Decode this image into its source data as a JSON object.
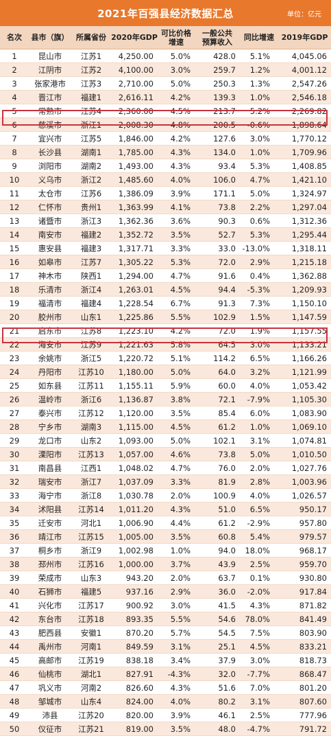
{
  "header": {
    "title": "2021年百强县经济数据汇总",
    "unit": "单位：亿元"
  },
  "columns": [
    "名次",
    "县市（旗）",
    "所属省份",
    "2020年GDP",
    "可比价格\n增速",
    "一般公共\n预算收入",
    "同比增速",
    "2019年GDP"
  ],
  "rows": [
    [
      "1",
      "昆山市",
      "江苏1",
      "4,250.00",
      "5.0%",
      "428.0",
      "5.1%",
      "4,045.06"
    ],
    [
      "2",
      "江阴市",
      "江苏2",
      "4,100.00",
      "3.0%",
      "259.7",
      "1.2%",
      "4,001.12"
    ],
    [
      "3",
      "张家港市",
      "江苏3",
      "2,710.00",
      "5.0%",
      "250.3",
      "1.3%",
      "2,547.26"
    ],
    [
      "4",
      "晋江市",
      "福建1",
      "2,616.11",
      "4.2%",
      "139.3",
      "1.0%",
      "2,546.18"
    ],
    [
      "5",
      "常熟市",
      "江苏4",
      "2,360.00",
      "4.5%",
      "213.7",
      "5.2%",
      "2,269.82"
    ],
    [
      "6",
      "慈溪市",
      "浙江1",
      "2,008.30",
      "4.8%",
      "200.5",
      "-0.6%",
      "1,898.64"
    ],
    [
      "7",
      "宜兴市",
      "江苏5",
      "1,846.00",
      "4.2%",
      "127.6",
      "3.0%",
      "1,770.12"
    ],
    [
      "8",
      "长沙县",
      "湖南1",
      "1,785.00",
      "4.3%",
      "134.0",
      "1.0%",
      "1,709.96"
    ],
    [
      "9",
      "浏阳市",
      "湖南2",
      "1,493.00",
      "4.3%",
      "93.4",
      "5.3%",
      "1,408.85"
    ],
    [
      "10",
      "义乌市",
      "浙江2",
      "1,485.60",
      "4.0%",
      "106.0",
      "4.7%",
      "1,421.10"
    ],
    [
      "11",
      "太仓市",
      "江苏6",
      "1,386.09",
      "3.9%",
      "171.1",
      "5.0%",
      "1,324.97"
    ],
    [
      "12",
      "仁怀市",
      "贵州1",
      "1,363.99",
      "4.1%",
      "73.8",
      "2.2%",
      "1,297.04"
    ],
    [
      "13",
      "诸暨市",
      "浙江3",
      "1,362.36",
      "3.6%",
      "90.3",
      "0.6%",
      "1,312.36"
    ],
    [
      "14",
      "南安市",
      "福建2",
      "1,352.72",
      "3.5%",
      "52.7",
      "5.3%",
      "1,295.44"
    ],
    [
      "15",
      "惠安县",
      "福建3",
      "1,317.71",
      "3.3%",
      "33.0",
      "-13.0%",
      "1,318.11"
    ],
    [
      "16",
      "如皋市",
      "江苏7",
      "1,305.22",
      "5.3%",
      "72.0",
      "2.9%",
      "1,215.18"
    ],
    [
      "17",
      "神木市",
      "陕西1",
      "1,294.00",
      "4.7%",
      "91.6",
      "0.4%",
      "1,362.88"
    ],
    [
      "18",
      "乐清市",
      "浙江4",
      "1,263.01",
      "4.5%",
      "94.4",
      "-5.3%",
      "1,209.93"
    ],
    [
      "19",
      "福清市",
      "福建4",
      "1,228.54",
      "6.7%",
      "91.3",
      "7.3%",
      "1,150.10"
    ],
    [
      "20",
      "胶州市",
      "山东1",
      "1,225.86",
      "5.5%",
      "102.9",
      "1.5%",
      "1,147.59"
    ],
    [
      "21",
      "启东市",
      "江苏8",
      "1,223.10",
      "4.2%",
      "72.0",
      "1.9%",
      "1,157.55"
    ],
    [
      "22",
      "海安市",
      "江苏9",
      "1,221.63",
      "5.8%",
      "64.5",
      "3.0%",
      "1,133.21"
    ],
    [
      "23",
      "余姚市",
      "浙江5",
      "1,220.72",
      "5.1%",
      "114.2",
      "6.5%",
      "1,166.26"
    ],
    [
      "24",
      "丹阳市",
      "江苏10",
      "1,180.00",
      "5.0%",
      "64.0",
      "3.2%",
      "1,121.99"
    ],
    [
      "25",
      "如东县",
      "江苏11",
      "1,155.11",
      "5.9%",
      "60.0",
      "4.0%",
      "1,053.42"
    ],
    [
      "26",
      "温岭市",
      "浙江6",
      "1,136.87",
      "3.8%",
      "72.1",
      "-7.9%",
      "1,105.30"
    ],
    [
      "27",
      "泰兴市",
      "江苏12",
      "1,120.00",
      "3.5%",
      "85.4",
      "6.0%",
      "1,083.90"
    ],
    [
      "28",
      "宁乡市",
      "湖南3",
      "1,115.00",
      "4.5%",
      "61.2",
      "1.0%",
      "1,069.10"
    ],
    [
      "29",
      "龙口市",
      "山东2",
      "1,093.00",
      "5.0%",
      "102.1",
      "3.1%",
      "1,074.81"
    ],
    [
      "30",
      "溧阳市",
      "江苏13",
      "1,057.00",
      "4.6%",
      "73.8",
      "5.0%",
      "1,010.50"
    ],
    [
      "31",
      "南昌县",
      "江西1",
      "1,048.02",
      "4.7%",
      "76.0",
      "2.0%",
      "1,027.76"
    ],
    [
      "32",
      "瑞安市",
      "浙江7",
      "1,037.09",
      "3.3%",
      "81.9",
      "2.8%",
      "1,003.96"
    ],
    [
      "33",
      "海宁市",
      "浙江8",
      "1,030.78",
      "2.0%",
      "100.9",
      "4.0%",
      "1,026.57"
    ],
    [
      "34",
      "沭阳县",
      "江苏14",
      "1,011.20",
      "4.3%",
      "51.0",
      "6.5%",
      "950.17"
    ],
    [
      "35",
      "迁安市",
      "河北1",
      "1,006.90",
      "4.4%",
      "61.2",
      "-2.9%",
      "957.80"
    ],
    [
      "36",
      "靖江市",
      "江苏15",
      "1,005.00",
      "3.5%",
      "60.8",
      "5.4%",
      "979.57"
    ],
    [
      "37",
      "桐乡市",
      "浙江9",
      "1,002.98",
      "1.0%",
      "94.0",
      "18.0%",
      "968.17"
    ],
    [
      "38",
      "邳州市",
      "江苏16",
      "1,000.00",
      "3.7%",
      "43.9",
      "2.5%",
      "959.70"
    ],
    [
      "39",
      "荣成市",
      "山东3",
      "943.20",
      "2.0%",
      "63.7",
      "0.1%",
      "930.80"
    ],
    [
      "40",
      "石狮市",
      "福建5",
      "937.16",
      "2.9%",
      "36.0",
      "-2.0%",
      "917.84"
    ],
    [
      "41",
      "兴化市",
      "江苏17",
      "900.92",
      "3.0%",
      "41.5",
      "4.3%",
      "871.82"
    ],
    [
      "42",
      "东台市",
      "江苏18",
      "893.35",
      "5.5%",
      "54.6",
      "78.0%",
      "841.49"
    ],
    [
      "43",
      "肥西县",
      "安徽1",
      "870.20",
      "5.7%",
      "54.5",
      "7.5%",
      "803.90"
    ],
    [
      "44",
      "禹州市",
      "河南1",
      "849.59",
      "3.1%",
      "25.1",
      "4.5%",
      "833.21"
    ],
    [
      "45",
      "高邮市",
      "江苏19",
      "838.18",
      "3.4%",
      "37.9",
      "3.0%",
      "818.73"
    ],
    [
      "46",
      "仙桃市",
      "湖北1",
      "827.91",
      "-4.3%",
      "32.0",
      "-7.7%",
      "868.47"
    ],
    [
      "47",
      "巩义市",
      "河南2",
      "826.60",
      "4.3%",
      "51.6",
      "7.0%",
      "801.20"
    ],
    [
      "48",
      "邹城市",
      "山东4",
      "824.00",
      "4.0%",
      "80.2",
      "3.1%",
      "807.60"
    ],
    [
      "49",
      "沛县",
      "江苏20",
      "820.00",
      "3.9%",
      "46.1",
      "2.5%",
      "777.96"
    ],
    [
      "50",
      "仪征市",
      "江苏21",
      "819.00",
      "3.5%",
      "48.0",
      "-4.7%",
      "791.72"
    ]
  ],
  "highlight_color": "#c8323c",
  "header_color": "#e8782c"
}
